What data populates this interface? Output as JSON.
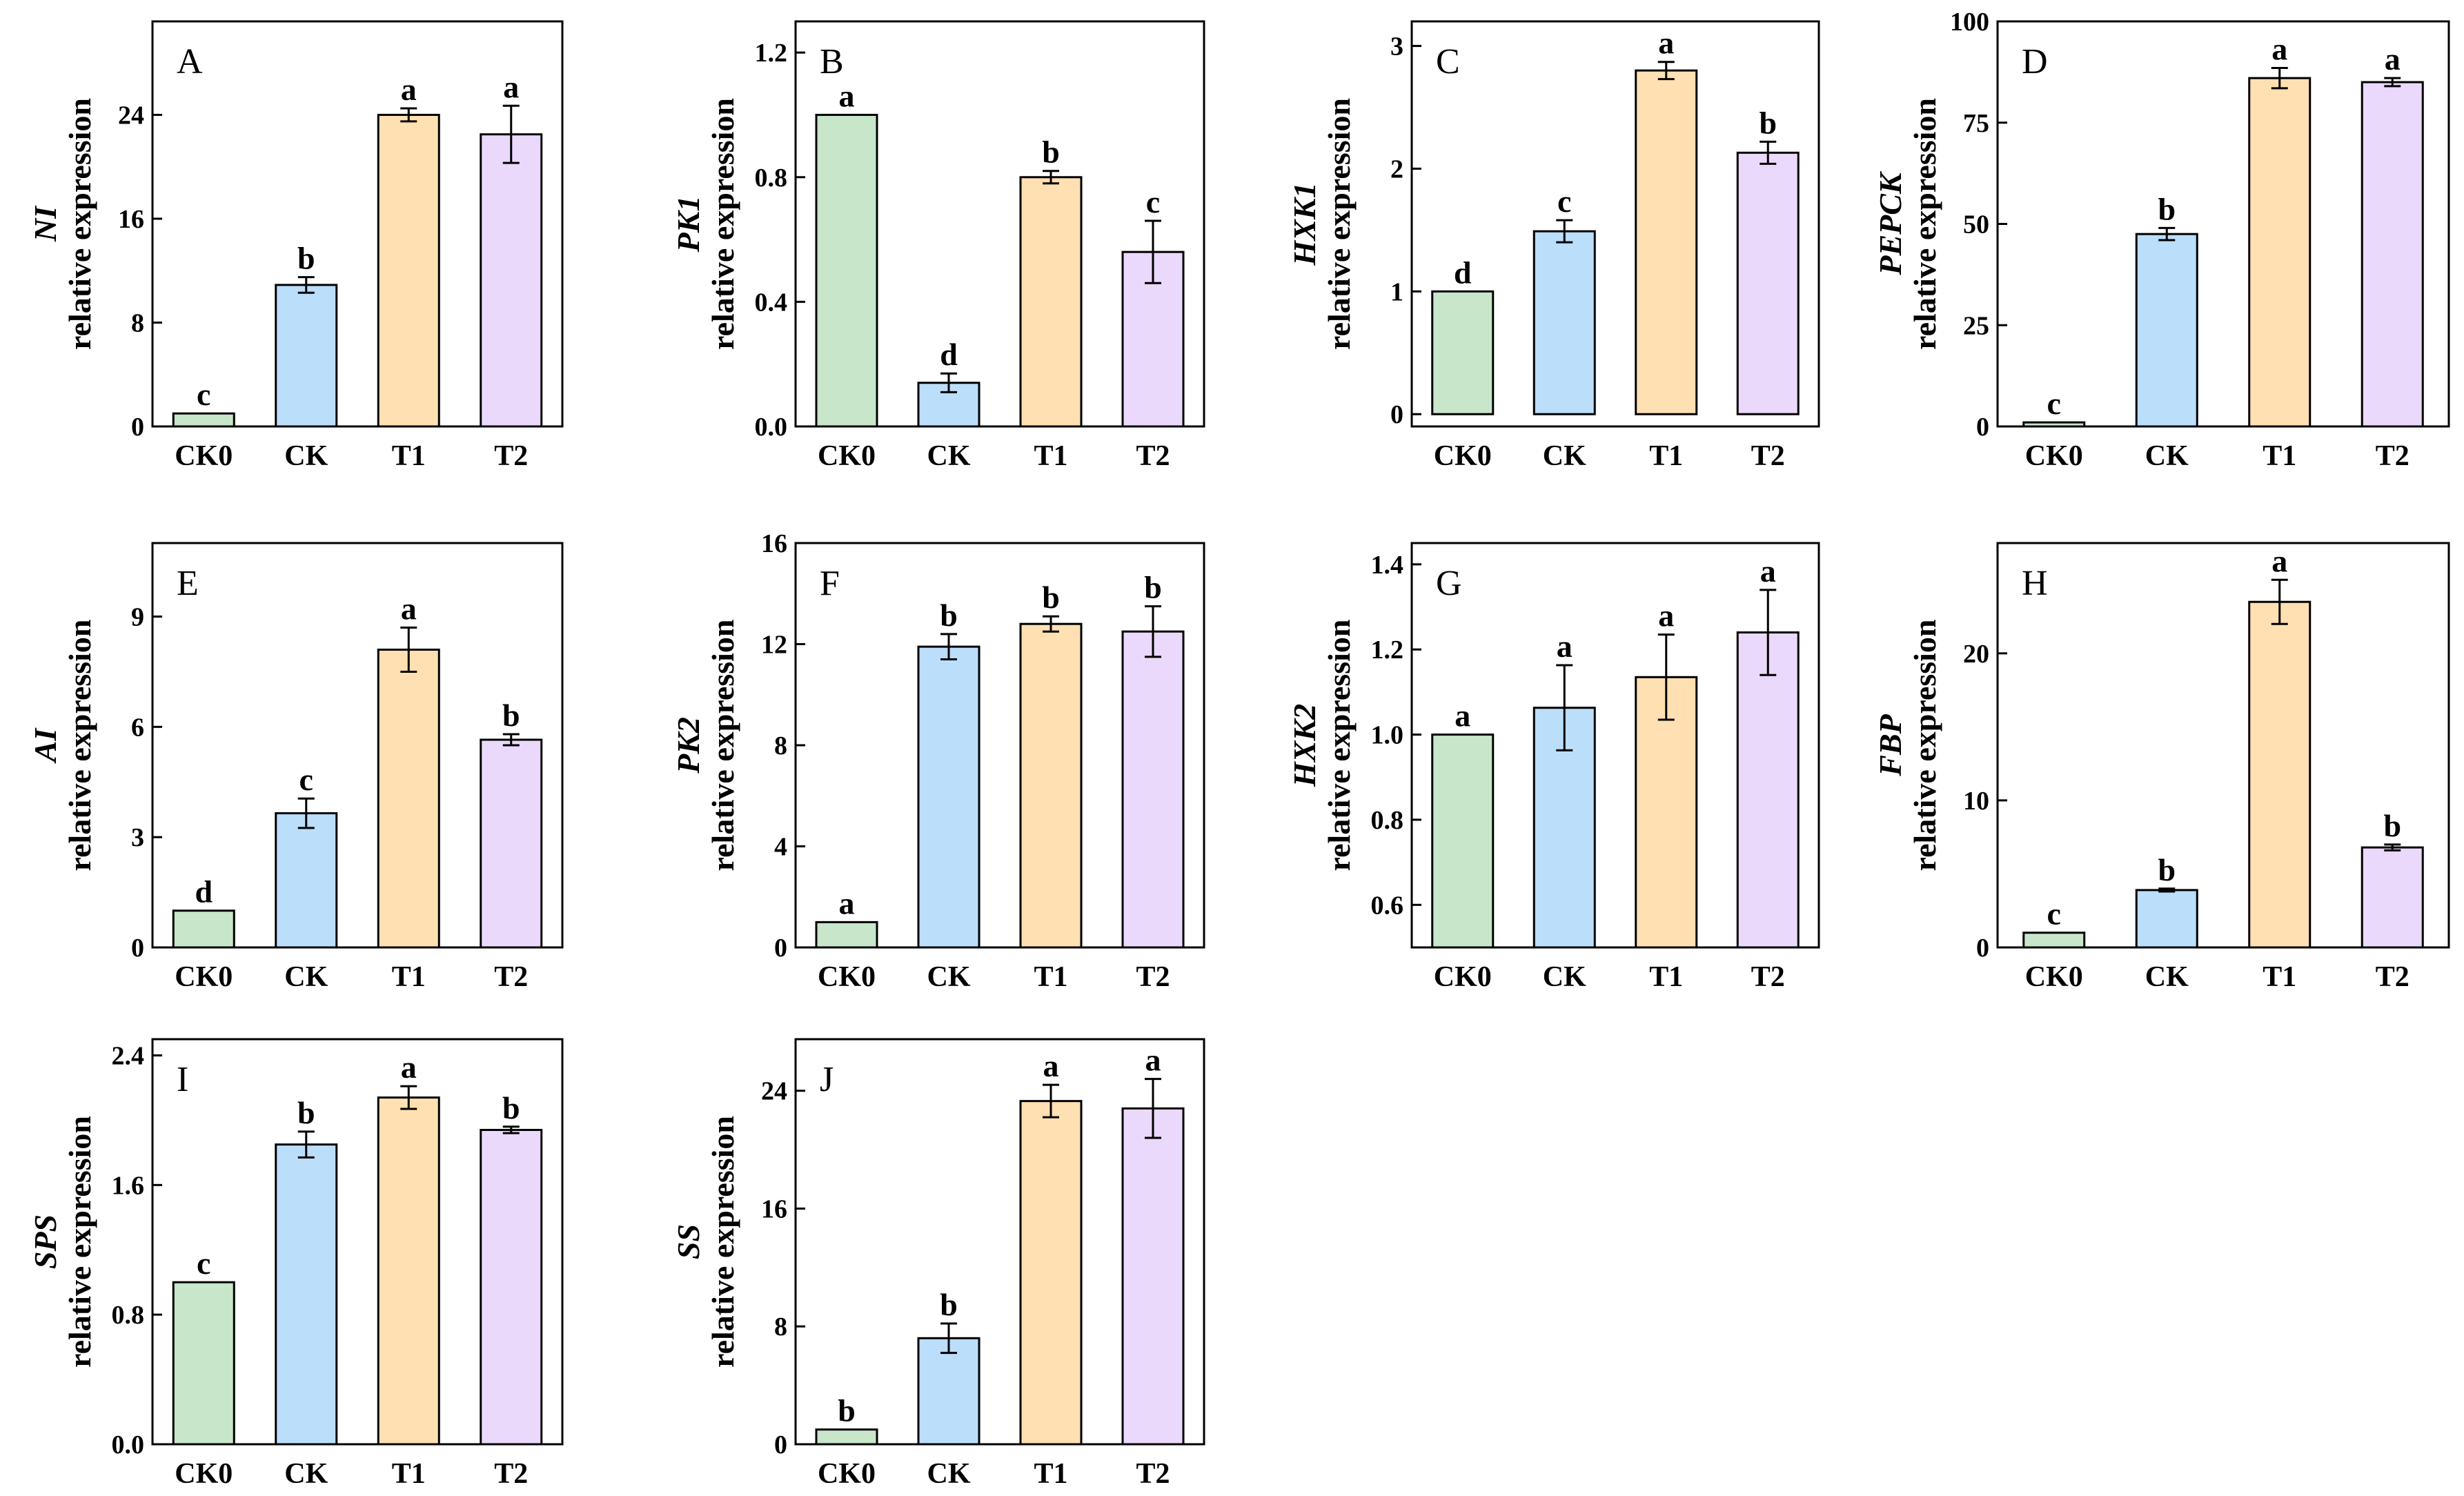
{
  "categories": [
    "CK0",
    "CK",
    "T1",
    "T2"
  ],
  "colors": [
    "#c8e6c9",
    "#bbdefb",
    "#ffe0b2",
    "#ead9fa"
  ],
  "ylabel_suffix": "relative expression",
  "chart_data": [
    {
      "id": "A",
      "type": "bar",
      "gene": "NI",
      "ylabel": "relative expression",
      "ylim": [
        0,
        31.2
      ],
      "ticks": [
        0,
        8,
        16,
        24
      ],
      "tick_labels": [
        "0",
        "8",
        "16",
        "24"
      ],
      "values": [
        1.0,
        10.9,
        24.0,
        22.5
      ],
      "errors": [
        0,
        0.6,
        0.5,
        2.2
      ],
      "sig": [
        "c",
        "b",
        "a",
        "a"
      ]
    },
    {
      "id": "B",
      "type": "bar",
      "gene": "PK1",
      "ylabel": "relative expression",
      "ylim": [
        0,
        1.3
      ],
      "ticks": [
        0,
        0.4,
        0.8,
        1.2
      ],
      "tick_labels": [
        "0.0",
        "0.4",
        "0.8",
        "1.2"
      ],
      "values": [
        1.0,
        0.14,
        0.8,
        0.56
      ],
      "errors": [
        0,
        0.03,
        0.02,
        0.1
      ],
      "sig": [
        "a",
        "d",
        "b",
        "c"
      ]
    },
    {
      "id": "C",
      "type": "bar",
      "gene": "HXK1",
      "ylabel": "relative expression",
      "ylim": [
        -0.1,
        3.2
      ],
      "ticks": [
        0,
        1,
        2,
        3
      ],
      "tick_labels": [
        "0",
        "1",
        "2",
        "3"
      ],
      "values": [
        1.0,
        1.49,
        2.8,
        2.13
      ],
      "errors": [
        0,
        0.09,
        0.07,
        0.09
      ],
      "sig": [
        "d",
        "c",
        "a",
        "b"
      ]
    },
    {
      "id": "D",
      "type": "bar",
      "gene": "PEPCK",
      "ylabel": "relative expression",
      "ylim": [
        0,
        100
      ],
      "ticks": [
        0,
        25,
        50,
        75,
        100
      ],
      "tick_labels": [
        "0",
        "25",
        "50",
        "75",
        "100"
      ],
      "values": [
        1.0,
        47.5,
        86.0,
        85.0
      ],
      "errors": [
        0,
        1.5,
        2.5,
        1.0
      ],
      "sig": [
        "c",
        "b",
        "a",
        "a"
      ]
    },
    {
      "id": "E",
      "type": "bar",
      "gene": "AI",
      "ylabel": "relative expression",
      "ylim": [
        0,
        11.0
      ],
      "ticks": [
        0,
        3,
        6,
        9
      ],
      "tick_labels": [
        "0",
        "3",
        "6",
        "9"
      ],
      "values": [
        1.0,
        3.65,
        8.1,
        5.65
      ],
      "errors": [
        0,
        0.4,
        0.6,
        0.15
      ],
      "sig": [
        "d",
        "c",
        "a",
        "b"
      ]
    },
    {
      "id": "F",
      "type": "bar",
      "gene": "PK2",
      "ylabel": "relative expression",
      "ylim": [
        0,
        16
      ],
      "ticks": [
        0,
        4,
        8,
        12,
        16
      ],
      "tick_labels": [
        "0",
        "4",
        "8",
        "12",
        "16"
      ],
      "values": [
        1.0,
        11.9,
        12.8,
        12.5
      ],
      "errors": [
        0,
        0.5,
        0.3,
        1.0
      ],
      "sig": [
        "a",
        "b",
        "b",
        "b"
      ]
    },
    {
      "id": "G",
      "type": "bar",
      "gene": "HXK2",
      "ylabel": "relative expression",
      "ylim": [
        0.5,
        1.45
      ],
      "ticks": [
        0.6,
        0.8,
        1.0,
        1.2,
        1.4
      ],
      "tick_labels": [
        "0.6",
        "0.8",
        "1.0",
        "1.2",
        "1.4"
      ],
      "values": [
        1.0,
        1.063,
        1.135,
        1.24
      ],
      "errors": [
        0,
        0.1,
        0.1,
        0.1
      ],
      "sig": [
        "a",
        "a",
        "a",
        "a"
      ]
    },
    {
      "id": "H",
      "type": "bar",
      "gene": "FBP",
      "ylabel": "relative expression",
      "ylim": [
        0,
        27.5
      ],
      "ticks": [
        0,
        10,
        20
      ],
      "tick_labels": [
        "0",
        "10",
        "20"
      ],
      "values": [
        1.0,
        3.9,
        23.5,
        6.8
      ],
      "errors": [
        0,
        0.1,
        1.5,
        0.2
      ],
      "sig": [
        "c",
        "b",
        "a",
        "b"
      ]
    },
    {
      "id": "I",
      "type": "bar",
      "gene": "SPS",
      "ylabel": "relative expression",
      "ylim": [
        0,
        2.5
      ],
      "ticks": [
        0,
        0.8,
        1.6,
        2.4
      ],
      "tick_labels": [
        "0.0",
        "0.8",
        "1.6",
        "2.4"
      ],
      "values": [
        1.0,
        1.85,
        2.14,
        1.94
      ],
      "errors": [
        0,
        0.08,
        0.07,
        0.02
      ],
      "sig": [
        "c",
        "b",
        "a",
        "b"
      ]
    },
    {
      "id": "J",
      "type": "bar",
      "gene": "SS",
      "ylabel": "relative expression",
      "ylim": [
        0,
        27.5
      ],
      "ticks": [
        0,
        8,
        16,
        24
      ],
      "tick_labels": [
        "0",
        "8",
        "16",
        "24"
      ],
      "values": [
        1.0,
        7.2,
        23.3,
        22.8
      ],
      "errors": [
        0,
        1.0,
        1.1,
        2.0
      ],
      "sig": [
        "b",
        "b",
        "a",
        "a"
      ]
    }
  ]
}
